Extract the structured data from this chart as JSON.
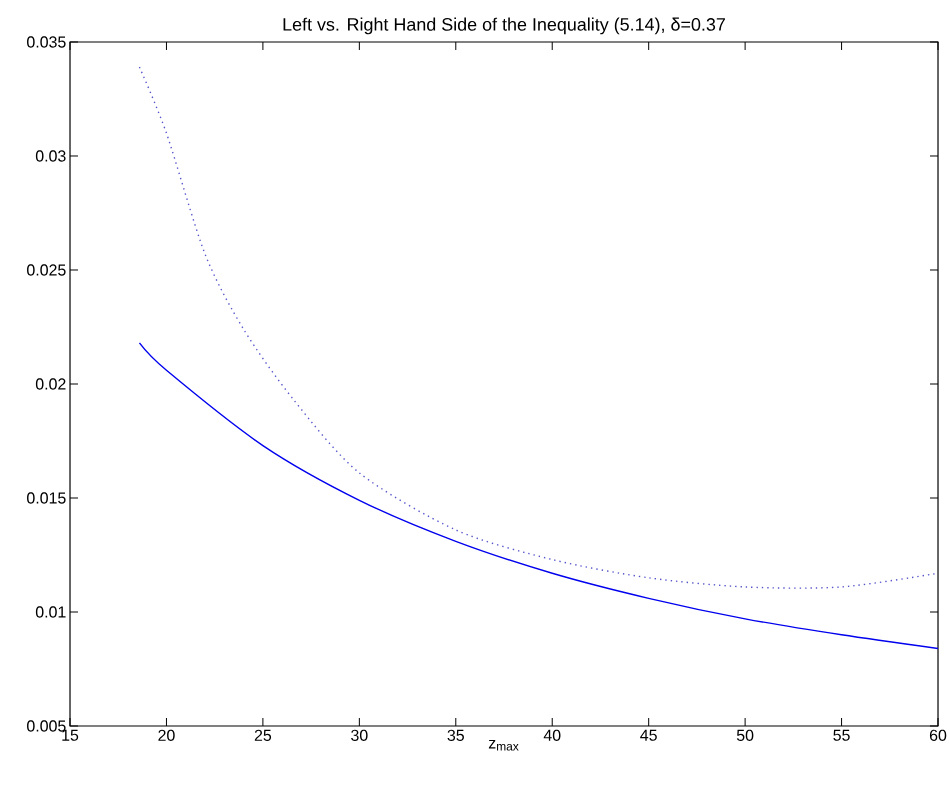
{
  "chart_data": {
    "type": "line",
    "title": "Left vs. Right Hand Side of the Inequality (5.14), δ=0.37",
    "xlabel": "z$_{max}$",
    "xlim": [
      15,
      60
    ],
    "xticks": [
      15,
      20,
      25,
      30,
      35,
      40,
      45,
      50,
      55,
      60
    ],
    "ylim": [
      0.005,
      0.035
    ],
    "yticks": [
      0.005,
      0.01,
      0.015,
      0.02,
      0.025,
      0.03,
      0.035
    ],
    "grid": false,
    "series": [
      {
        "color": "#0000ee",
        "line_style": "solid",
        "x": [
          18.6,
          20,
          25,
          30,
          35,
          40,
          45,
          50,
          55,
          60
        ],
        "values": [
          0.0218,
          0.0206,
          0.0173,
          0.0149,
          0.0131,
          0.0117,
          0.0106,
          0.0097,
          0.009,
          0.0084
        ]
      },
      {
        "color": "#5555cc",
        "line_style": "dotted",
        "x": [
          18.6,
          20,
          22,
          24,
          26.6,
          30,
          35,
          40,
          45,
          50,
          55,
          60
        ],
        "values": [
          0.0339,
          0.031,
          0.0257,
          0.0224,
          0.0193,
          0.0161,
          0.0136,
          0.0123,
          0.0115,
          0.0111,
          0.0111,
          0.0117
        ]
      }
    ]
  }
}
